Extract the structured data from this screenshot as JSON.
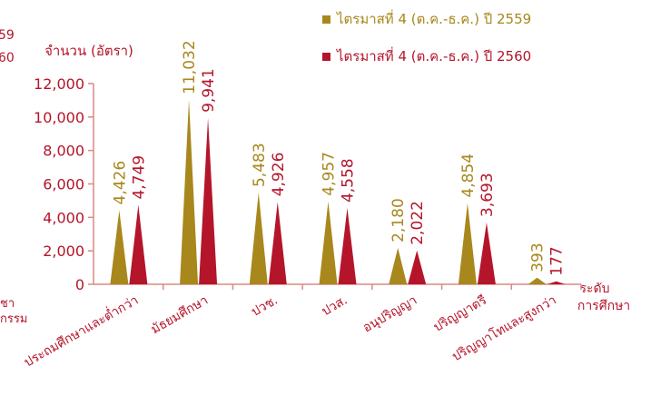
{
  "chart_data": {
    "type": "bar",
    "ylabel": "จำนวน (อัตรา)",
    "xlabel_line1": "ระดับ",
    "xlabel_line2": "การศึกษา",
    "ylim": [
      0,
      12000
    ],
    "yticks": [
      "0",
      "2,000",
      "4,000",
      "6,000",
      "8,000",
      "10,000",
      "12,000"
    ],
    "categories": [
      "ประถมศึกษาและต่ำกว่า",
      "มัธยมศึกษา",
      "ปวช.",
      "ปวส.",
      "อนุปริญญา",
      "ปริญญาตรี",
      "ปริญญาโทและสูงกว่า"
    ],
    "series": [
      {
        "name": "ไตรมาสที่ 4 (ต.ค.-ธ.ค.) ปี 2559",
        "color": "#a8871c",
        "values": [
          4426,
          11032,
          5483,
          4957,
          2180,
          4854,
          393
        ],
        "labels": [
          "4,426",
          "11,032",
          "5,483",
          "4,957",
          "2,180",
          "4,854",
          "393"
        ]
      },
      {
        "name": "ไตรมาสที่ 4 (ต.ค.-ธ.ค.) ปี 2560",
        "color": "#b5152a",
        "values": [
          4749,
          9941,
          4926,
          4558,
          2022,
          3693,
          177
        ],
        "labels": [
          "4,749",
          "9,941",
          "4,926",
          "4,558",
          "2,022",
          "3,693",
          "177"
        ]
      }
    ],
    "legend_position": "top-right",
    "grid": false
  },
  "left_fragments": {
    "top1": "59",
    "top2": "60",
    "bottom1": "ชา",
    "bottom2": "กรรม"
  },
  "colors": {
    "axis": "#d98a86",
    "text": "#b5152a"
  }
}
